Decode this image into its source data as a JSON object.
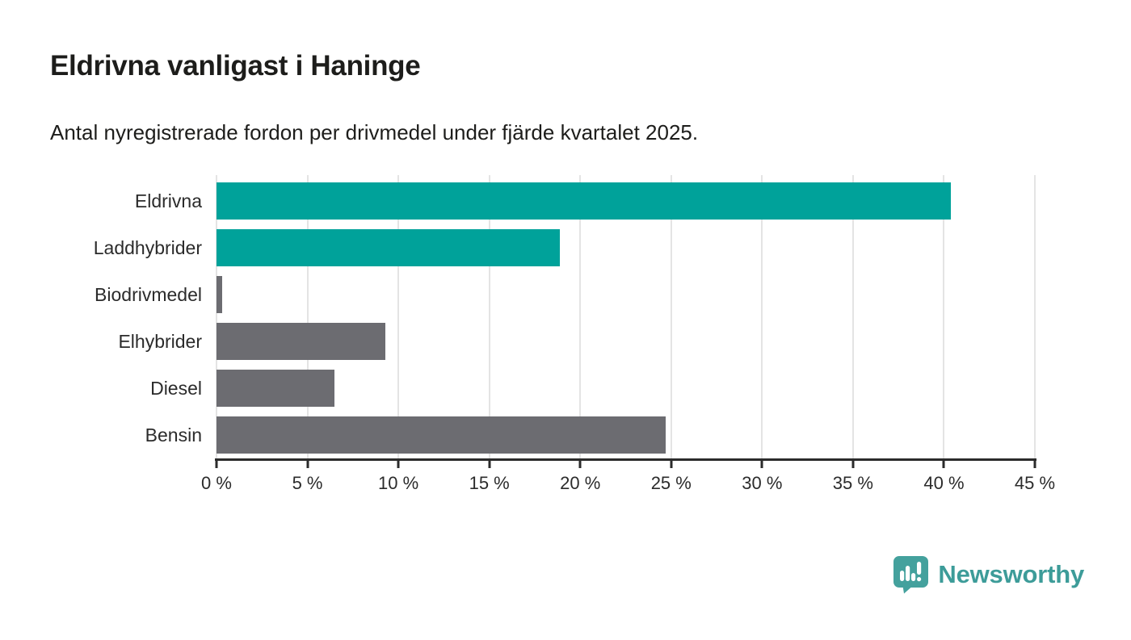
{
  "chart_data": {
    "type": "bar",
    "orientation": "horizontal",
    "title": "Eldrivna vanligast i Haninge",
    "subtitle": "Antal nyregistrerade fordon per drivmedel under fjärde kvartalet 2025.",
    "categories": [
      "Eldrivna",
      "Laddhybrider",
      "Biodrivmedel",
      "Elhybrider",
      "Diesel",
      "Bensin"
    ],
    "values": [
      40.4,
      18.9,
      0.3,
      9.3,
      6.5,
      24.7
    ],
    "bar_colors": [
      "#00a29a",
      "#00a29a",
      "#6c6c71",
      "#6c6c71",
      "#6c6c71",
      "#6c6c71"
    ],
    "xlabel": "",
    "ylabel": "",
    "xlim": [
      0,
      45
    ],
    "x_ticks": [
      0,
      5,
      10,
      15,
      20,
      25,
      30,
      35,
      40,
      45
    ],
    "x_tick_labels": [
      "0 %",
      "5 %",
      "10 %",
      "15 %",
      "20 %",
      "25 %",
      "30 %",
      "35 %",
      "40 %",
      "45 %"
    ],
    "grid": "vertical",
    "legend": "none"
  },
  "branding": {
    "logo_text": "Newsworthy",
    "logo_icon": "speech-bubble-bar-chart-exclamation-icon",
    "text_color": "#3d9c99",
    "icon_color": "#44a19d"
  },
  "colors": {
    "teal_bar": "#00a29a",
    "gray_bar": "#6c6c71",
    "gridline": "#e4e4e4",
    "axis_line": "#2b2b2b",
    "text": "#1d1d1b",
    "background": "#ffffff"
  }
}
